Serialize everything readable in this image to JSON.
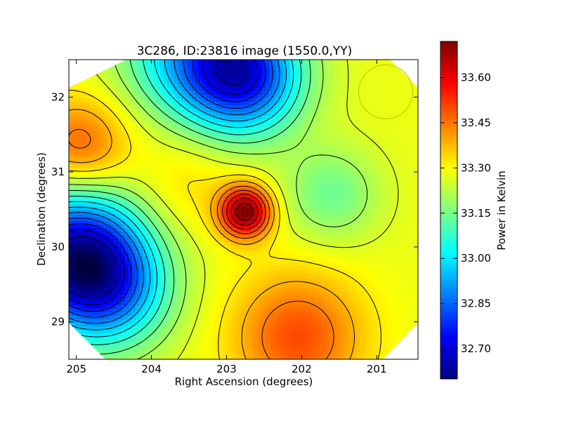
{
  "chart_data": {
    "type": "heatmap",
    "title": "3C286, ID:23816 image (1550.0,YY)",
    "xlabel": "Right Ascension (degrees)",
    "ylabel": "Declination (degrees)",
    "xlim": [
      205.1,
      200.45
    ],
    "ylim": [
      28.5,
      32.5
    ],
    "x_ticks": [
      205,
      204,
      203,
      202,
      201
    ],
    "y_ticks": [
      29,
      30,
      31,
      32
    ],
    "colorbar": {
      "label": "Power in Kelvin",
      "range": [
        32.6,
        33.72
      ],
      "ticks": [
        "32.70",
        "32.85",
        "33.00",
        "33.15",
        "33.30",
        "33.45",
        "33.60"
      ],
      "colormap": "jet"
    },
    "contours": true,
    "grid": false,
    "features": [
      {
        "kind": "peak",
        "ra": 202.75,
        "dec": 30.47,
        "value": 33.7
      },
      {
        "kind": "minimum",
        "ra": 205.0,
        "dec": 29.85,
        "value": 32.62
      },
      {
        "kind": "minimum",
        "ra": 202.8,
        "dec": 32.3,
        "value": 32.68
      },
      {
        "kind": "high",
        "ra": 202.05,
        "dec": 28.8,
        "value": 33.5
      },
      {
        "kind": "high",
        "ra": 204.95,
        "dec": 31.35,
        "value": 33.45
      }
    ],
    "marker": {
      "kind": "circle",
      "ra": 200.88,
      "dec": 32.07,
      "radius_deg": 0.36,
      "color": "#c8c800"
    }
  }
}
